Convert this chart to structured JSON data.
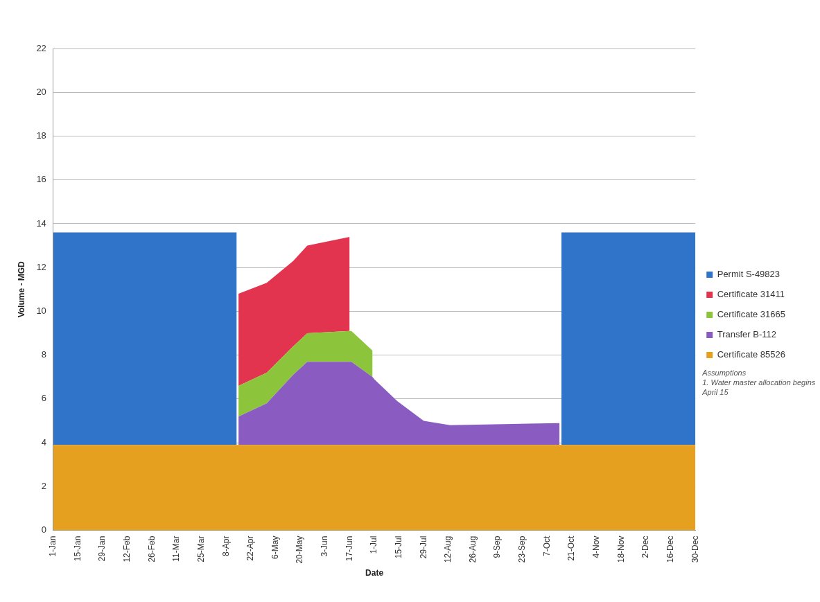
{
  "chart_data": {
    "type": "area",
    "stacked": true,
    "xlabel": "Date",
    "ylabel": "Volume - MGD",
    "x": [
      "--01-01",
      "--04-14",
      "--04-15",
      "--05-01",
      "--05-16",
      "--05-24",
      "--06-17",
      "--06-18",
      "--06-30",
      "--07-01",
      "--07-14",
      "--07-29",
      "--08-13",
      "--10-14",
      "--10-15",
      "--12-30"
    ],
    "series": [
      {
        "name": "Certificate 85526",
        "color": "#e5a020",
        "values": [
          3.9,
          3.9,
          3.9,
          3.9,
          3.9,
          3.9,
          3.9,
          3.9,
          3.9,
          3.9,
          3.9,
          3.9,
          3.9,
          3.9,
          3.9,
          3.9
        ]
      },
      {
        "name": "Transfer B-112",
        "color": "#8a5cc2",
        "values": [
          null,
          null,
          1.3,
          1.9,
          3.2,
          3.8,
          3.8,
          3.8,
          3.1,
          3.0,
          2.0,
          1.1,
          0.9,
          1.0,
          null,
          null
        ]
      },
      {
        "name": "Certificate 31665",
        "color": "#8cc43c",
        "values": [
          null,
          null,
          1.4,
          1.4,
          1.3,
          1.3,
          1.4,
          1.4,
          1.2,
          null,
          null,
          null,
          null,
          null,
          null,
          null
        ]
      },
      {
        "name": "Certificate 31411",
        "color": "#e2344e",
        "values": [
          null,
          null,
          4.2,
          4.1,
          3.9,
          4.0,
          4.3,
          null,
          null,
          null,
          null,
          null,
          null,
          null,
          null,
          null
        ]
      },
      {
        "name": "Permit S-49823",
        "color": "#2f74c8",
        "values": [
          9.7,
          9.7,
          null,
          null,
          null,
          null,
          null,
          null,
          null,
          null,
          null,
          null,
          null,
          null,
          9.7,
          9.7
        ]
      }
    ],
    "xlim": [
      "--01-01",
      "--12-30"
    ],
    "xticks": [
      {
        "value": "--01-01",
        "label": "1-Jan"
      },
      {
        "value": "--01-15",
        "label": "15-Jan"
      },
      {
        "value": "--01-29",
        "label": "29-Jan"
      },
      {
        "value": "--02-12",
        "label": "12-Feb"
      },
      {
        "value": "--02-26",
        "label": "26-Feb"
      },
      {
        "value": "--03-11",
        "label": "11-Mar"
      },
      {
        "value": "--03-25",
        "label": "25-Mar"
      },
      {
        "value": "--04-08",
        "label": "8-Apr"
      },
      {
        "value": "--04-22",
        "label": "22-Apr"
      },
      {
        "value": "--05-06",
        "label": "6-May"
      },
      {
        "value": "--05-20",
        "label": "20-May"
      },
      {
        "value": "--06-03",
        "label": "3-Jun"
      },
      {
        "value": "--06-17",
        "label": "17-Jun"
      },
      {
        "value": "--07-01",
        "label": "1-Jul"
      },
      {
        "value": "--07-15",
        "label": "15-Jul"
      },
      {
        "value": "--07-29",
        "label": "29-Jul"
      },
      {
        "value": "--08-12",
        "label": "12-Aug"
      },
      {
        "value": "--08-26",
        "label": "26-Aug"
      },
      {
        "value": "--09-09",
        "label": "9-Sep"
      },
      {
        "value": "--09-23",
        "label": "23-Sep"
      },
      {
        "value": "--10-07",
        "label": "7-Oct"
      },
      {
        "value": "--10-21",
        "label": "21-Oct"
      },
      {
        "value": "--11-04",
        "label": "4-Nov"
      },
      {
        "value": "--11-18",
        "label": "18-Nov"
      },
      {
        "value": "--12-02",
        "label": "2-Dec"
      },
      {
        "value": "--12-16",
        "label": "16-Dec"
      },
      {
        "value": "--12-30",
        "label": "30-Dec"
      }
    ],
    "ylim": [
      0,
      22
    ],
    "yticks": [
      0,
      2,
      4,
      6,
      8,
      10,
      12,
      14,
      16,
      18,
      20,
      22
    ],
    "grid": "y",
    "legend": "right",
    "annotations": [
      "Assumptions",
      "1. Water master allocation begins April 15"
    ]
  }
}
